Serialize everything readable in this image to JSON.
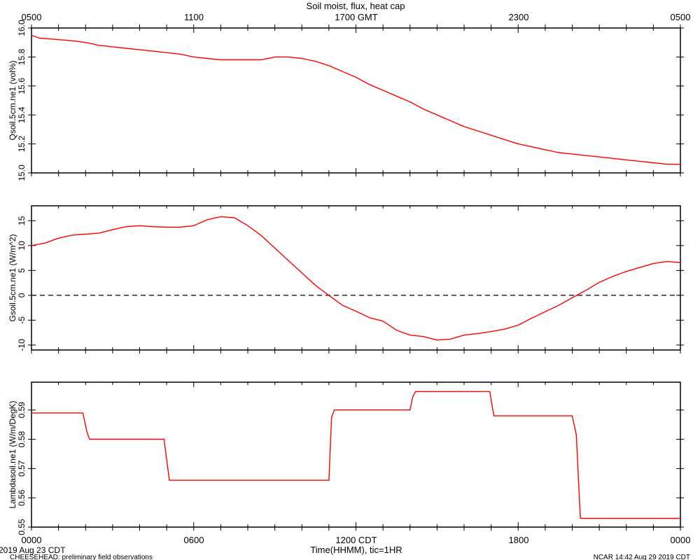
{
  "title": "Soil moist, flux, heat cap",
  "top_axis": {
    "ticks": [
      "0500",
      "1100",
      "1700 GMT",
      "2300",
      "0500"
    ]
  },
  "bottom_axis": {
    "ticks": [
      "0000",
      "0600",
      "1200 CDT",
      "1800",
      "0000"
    ],
    "xlabel": "Time(HHMM), tic=1HR"
  },
  "footer": {
    "date": "2019 Aug 23 CDT",
    "project": "CHEESEHEAD: preliminary field observations",
    "stamp": "NCAR 14:42 Aug 29 2019 CDT"
  },
  "colors": {
    "series": "#ff0000",
    "axes": "#000000",
    "zero_line": "#000000",
    "background": "#ffffff"
  },
  "chart_data": [
    {
      "type": "line",
      "ylabel": "Qsoil.5cm.ne1 (vol%)",
      "ylim": [
        15.0,
        16.0
      ],
      "yticks": [
        15.0,
        15.2,
        15.4,
        15.6,
        15.8,
        16.0
      ],
      "ytick_labels": [
        "15.0",
        "15.2",
        "15.4",
        "15.6",
        "15.8",
        "16.0"
      ],
      "xlim": [
        0,
        24
      ],
      "step": false,
      "series": [
        {
          "x": [
            0,
            0.3,
            1,
            1.6,
            2,
            2.5,
            3,
            3.5,
            4,
            4.5,
            5,
            5.5,
            6,
            6.5,
            7,
            7.5,
            8,
            8.5,
            9,
            9.5,
            10,
            10.5,
            11,
            11.5,
            12,
            12.5,
            13,
            13.5,
            14,
            14.5,
            15,
            15.5,
            16,
            16.5,
            17,
            17.5,
            18,
            18.5,
            19,
            19.5,
            20,
            20.5,
            21,
            21.5,
            22,
            22.5,
            23,
            23.5,
            24
          ],
          "y": [
            15.95,
            15.93,
            15.92,
            15.91,
            15.9,
            15.88,
            15.87,
            15.86,
            15.85,
            15.84,
            15.83,
            15.82,
            15.8,
            15.79,
            15.78,
            15.78,
            15.78,
            15.78,
            15.8,
            15.8,
            15.79,
            15.77,
            15.74,
            15.7,
            15.66,
            15.61,
            15.57,
            15.53,
            15.49,
            15.44,
            15.4,
            15.36,
            15.32,
            15.29,
            15.26,
            15.23,
            15.2,
            15.18,
            15.16,
            15.14,
            15.13,
            15.12,
            15.11,
            15.1,
            15.09,
            15.08,
            15.07,
            15.06,
            15.06
          ]
        }
      ]
    },
    {
      "type": "line",
      "ylabel": "Gsoil.5cm.ne1 (W/m^2)",
      "ylim": [
        -11,
        18
      ],
      "yticks": [
        -10,
        -5,
        0,
        5,
        10,
        15
      ],
      "ytick_labels": [
        "-10",
        "-5",
        "0",
        "5",
        "10",
        "15"
      ],
      "xlim": [
        0,
        24
      ],
      "zero_line": true,
      "step": false,
      "series": [
        {
          "x": [
            0,
            0.5,
            1,
            1.5,
            2,
            2.5,
            3,
            3.5,
            4,
            4.5,
            5,
            5.5,
            6,
            6.5,
            7,
            7.5,
            8,
            8.5,
            9,
            9.5,
            10,
            10.5,
            11,
            11.5,
            12,
            12.5,
            13,
            13.5,
            14,
            14.5,
            15,
            15.5,
            16,
            16.5,
            17,
            17.5,
            18,
            18.5,
            19,
            19.5,
            20,
            20.5,
            21,
            21.5,
            22,
            22.5,
            23,
            23.5,
            24
          ],
          "y": [
            10,
            10.5,
            11.5,
            12.1,
            12.3,
            12.5,
            13.2,
            13.8,
            14,
            13.8,
            13.7,
            13.7,
            14,
            15.2,
            15.8,
            15.6,
            14,
            12,
            9.5,
            7,
            4.5,
            2,
            0,
            -2,
            -3.2,
            -4.5,
            -5.2,
            -7,
            -8,
            -8.3,
            -9,
            -8.8,
            -8,
            -7.7,
            -7.3,
            -6.8,
            -6,
            -4.6,
            -3.3,
            -2,
            -0.5,
            1,
            2.6,
            3.8,
            4.8,
            5.6,
            6.4,
            6.8,
            6.6
          ]
        }
      ]
    },
    {
      "type": "line",
      "ylabel": "Lambdasoil.ne1 (W/m/DegK)",
      "ylim": [
        0.55,
        0.5995
      ],
      "yticks": [
        0.55,
        0.56,
        0.57,
        0.58,
        0.59
      ],
      "ytick_labels": [
        "0.55",
        "0.56",
        "0.57",
        "0.58",
        "0.59"
      ],
      "xlim": [
        0,
        24
      ],
      "step": true,
      "series": [
        {
          "x": [
            0,
            1.9,
            2.05,
            2.15,
            4.9,
            5.1,
            11.0,
            11.1,
            11.2,
            14.0,
            14.1,
            14.2,
            16.95,
            17.1,
            20.0,
            20.15,
            20.3,
            24
          ],
          "y": [
            0.589,
            0.589,
            0.5825,
            0.58,
            0.58,
            0.566,
            0.566,
            0.5875,
            0.59,
            0.59,
            0.5945,
            0.5963,
            0.5963,
            0.588,
            0.588,
            0.5815,
            0.553,
            0.553
          ]
        }
      ]
    }
  ]
}
